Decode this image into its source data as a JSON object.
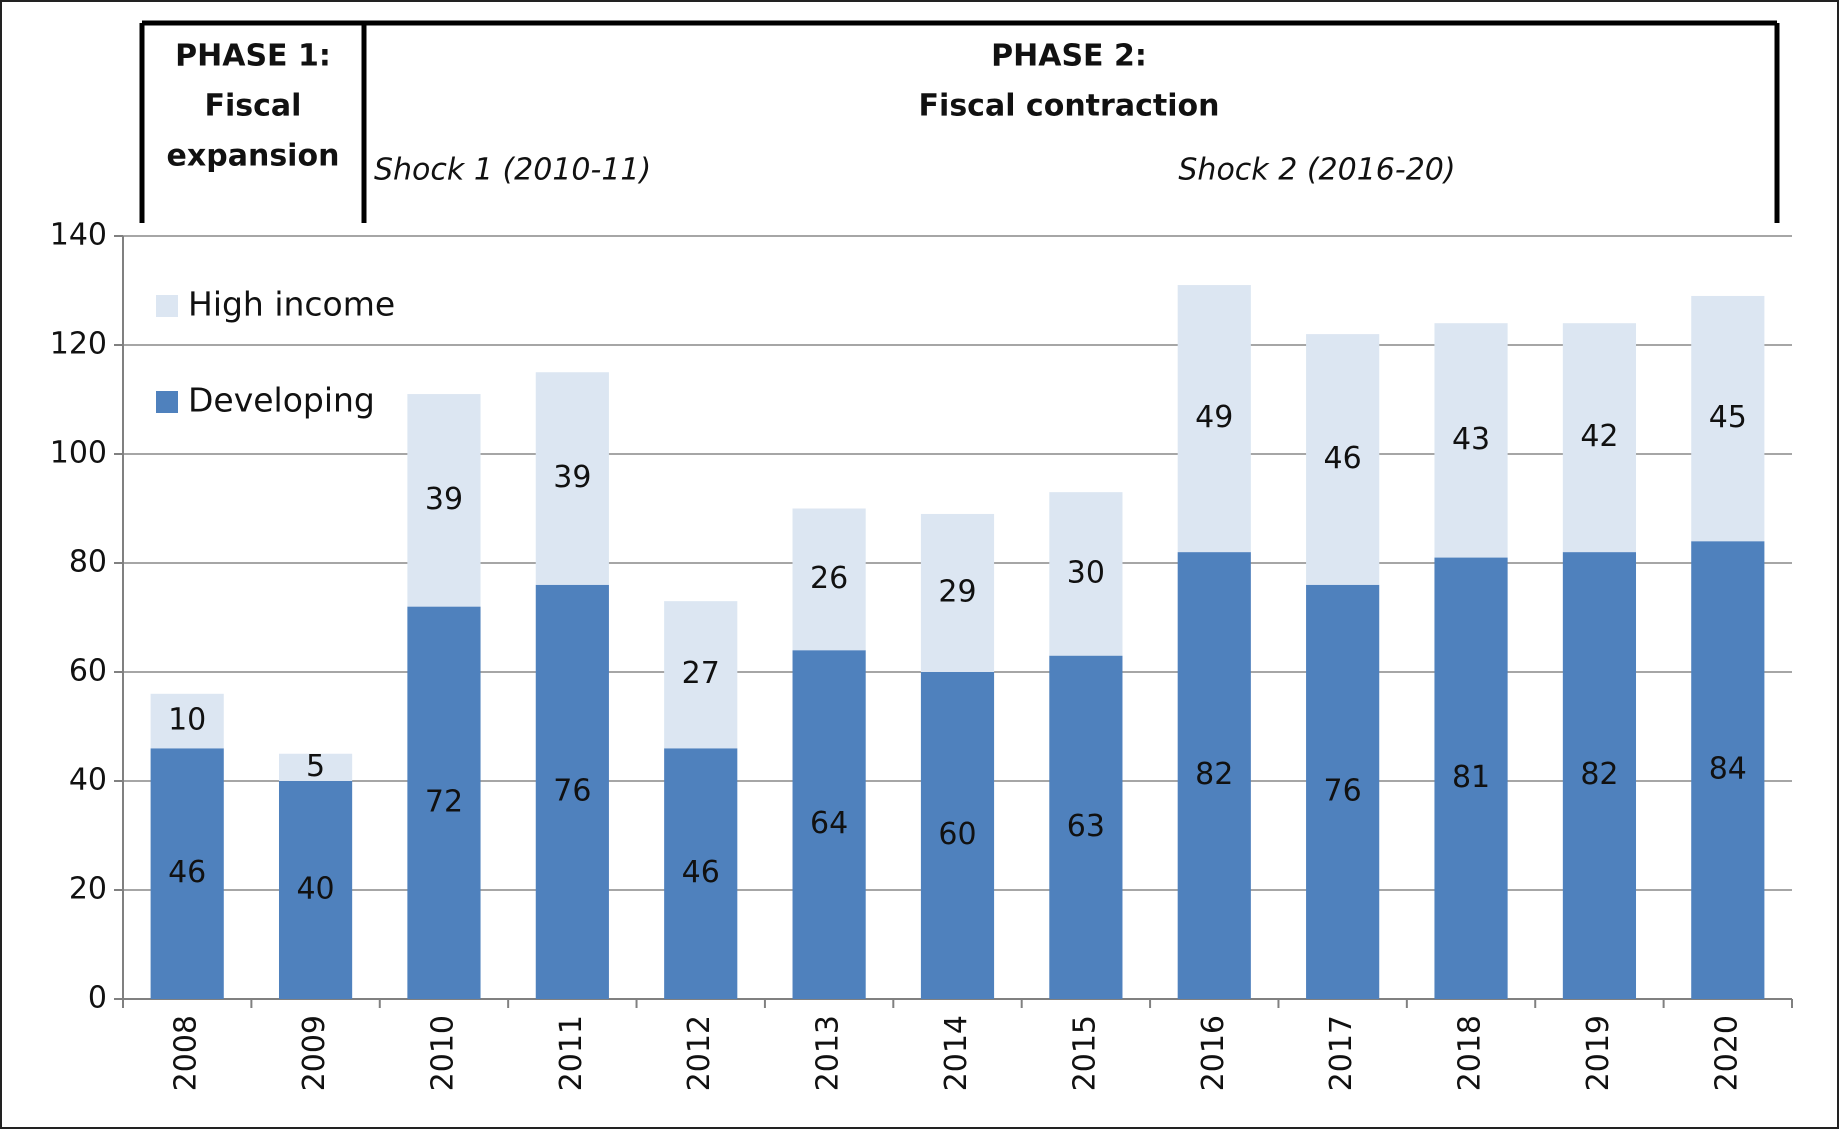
{
  "chart_data": {
    "type": "stacked-bar",
    "annotations": {
      "phase1": [
        "PHASE 1:",
        "Fiscal",
        "expansion"
      ],
      "phase2": [
        "PHASE 2:",
        "Fiscal contraction"
      ],
      "shock1": "Shock 1 (2010-11)",
      "shock2": "Shock 2 (2016-20)"
    },
    "categories": [
      "2008",
      "2009",
      "2010",
      "2011",
      "2012",
      "2013",
      "2014",
      "2015",
      "2016",
      "2017",
      "2018",
      "2019",
      "2020"
    ],
    "series": [
      {
        "name": "Developing",
        "color": "#4f81bd",
        "values": [
          46,
          40,
          72,
          76,
          46,
          64,
          60,
          63,
          82,
          76,
          81,
          82,
          84
        ]
      },
      {
        "name": "High income",
        "color": "#dce6f2",
        "values": [
          10,
          5,
          39,
          39,
          27,
          26,
          29,
          30,
          49,
          46,
          43,
          42,
          45
        ]
      }
    ],
    "ylim": [
      0,
      140
    ],
    "yticks": [
      0,
      20,
      40,
      60,
      80,
      100,
      120,
      140
    ],
    "grid": true,
    "legend": "top-left"
  }
}
